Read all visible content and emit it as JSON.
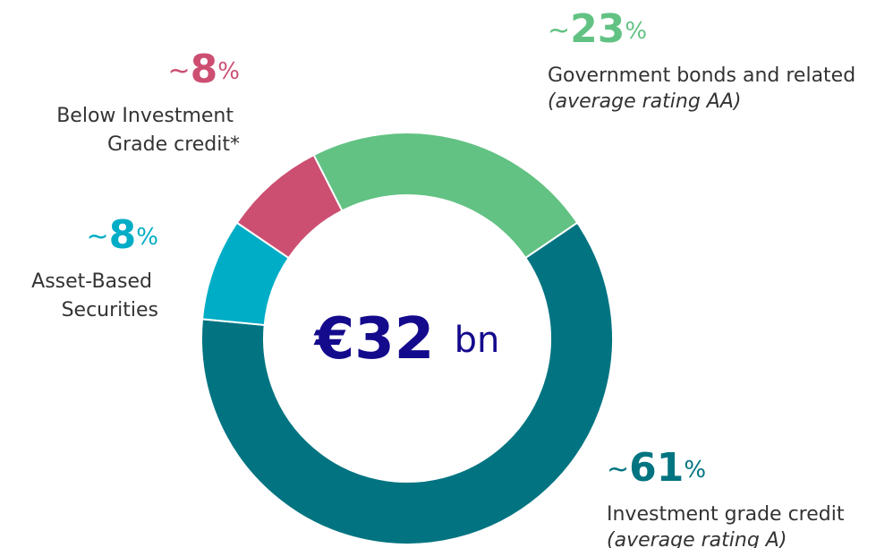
{
  "chart_data": {
    "type": "donut",
    "categories": [
      "Government bonds and related",
      "Investment grade credit",
      "Asset-Based Securities",
      "Below Investment Grade credit*"
    ],
    "notes": [
      "(average rating AA)",
      "(average rating A)",
      null,
      null
    ],
    "values": [
      23,
      61,
      8,
      8
    ],
    "value_labels": [
      "~23%",
      "~61%",
      "~8%",
      "~8%"
    ],
    "colors": [
      "#62c283",
      "#027481",
      "#00adc6",
      "#cc4f72"
    ],
    "center_label": "€32 bn"
  }
}
